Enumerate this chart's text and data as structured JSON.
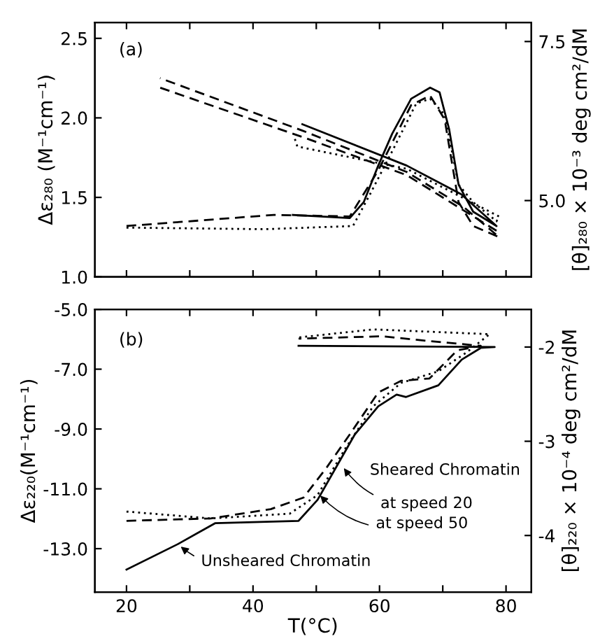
{
  "chart_data": [
    {
      "type": "line",
      "ylabel": "Δε₂₈₀ (M⁻¹cm⁻¹)",
      "y2label": "[θ]₂₈₀ × 10⁻³ deg cm²/dM",
      "xlim": [
        15,
        84
      ],
      "xticks": [
        20,
        30,
        40,
        50,
        60,
        70,
        80
      ],
      "tick_labels": "y",
      "ylim": [
        1.0,
        2.6
      ],
      "yticks": [
        {
          "value": 1.0,
          "label": "1.0"
        },
        {
          "value": 1.5,
          "label": "1.5"
        },
        {
          "value": 2.0,
          "label": "2.0"
        },
        {
          "value": 2.5,
          "label": "2.5"
        }
      ],
      "y2lim": [
        3.8,
        7.8
      ],
      "y2ticks": [
        {
          "value": 5,
          "label": "5.0"
        },
        {
          "value": 7.5,
          "label": "7.5"
        }
      ],
      "grid": false,
      "legend": false,
      "marker": "none",
      "series": [
        {
          "color": "#000000",
          "line_style": "solid",
          "x": [
            46.3,
            55.3,
            57.5,
            59.8,
            62.0,
            65.0,
            68.0,
            69.5,
            71.0,
            72.5,
            74.8,
            78.5,
            72.9,
            64.3,
            47.8
          ],
          "values": [
            1.39,
            1.37,
            1.47,
            1.7,
            1.9,
            2.12,
            2.19,
            2.16,
            1.93,
            1.58,
            1.41,
            1.32,
            1.52,
            1.7,
            1.96
          ]
        },
        {
          "color": "#000000",
          "line_style": "dashed",
          "x": [
            20,
            43.3,
            55.3,
            59.8,
            65.0,
            68.0,
            70.3,
            72.5,
            74.8,
            78.9,
            73.3,
            64.3,
            47.8,
            25.3
          ],
          "values": [
            1.32,
            1.39,
            1.38,
            1.67,
            2.08,
            2.14,
            1.99,
            1.47,
            1.32,
            1.25,
            1.44,
            1.66,
            1.92,
            2.25
          ]
        },
        {
          "color": "#000000",
          "line_style": "dashed",
          "x": [
            78.5,
            64.3,
            48.5,
            25.3
          ],
          "values": [
            1.29,
            1.64,
            1.87,
            2.19
          ]
        },
        {
          "color": "#000000",
          "line_style": "dotted",
          "x": [
            20,
            41.8,
            55.8,
            58.5,
            62.0,
            65.8,
            68.0,
            70.3,
            72.5,
            74.8,
            78.5,
            78.9,
            64.3,
            47.0,
            46.6
          ],
          "values": [
            1.31,
            1.3,
            1.32,
            1.52,
            1.79,
            2.09,
            2.12,
            2.02,
            1.58,
            1.47,
            1.35,
            1.38,
            1.68,
            1.82,
            1.87
          ]
        }
      ],
      "annotations": [
        "(a)"
      ]
    },
    {
      "type": "line",
      "xlabel": "T(°C)",
      "ylabel": "Δε₂₂₀(M⁻¹cm⁻¹)",
      "y2label": "[θ]₂₂₀ × 10⁻⁴ deg cm²/dM",
      "xlim": [
        15,
        84
      ],
      "xticks": [
        20,
        {
          "value": 30,
          "label": null
        },
        40,
        {
          "value": 50,
          "label": null
        },
        60,
        {
          "value": 70,
          "label": null
        },
        80
      ],
      "ylim": [
        -14.45,
        -5.0
      ],
      "yticks": [
        {
          "value": -13,
          "label": "-13.0"
        },
        {
          "value": -11,
          "label": "-11.0"
        },
        {
          "value": -9,
          "label": "-9.0"
        },
        {
          "value": -7,
          "label": "-7.0"
        },
        {
          "value": -5,
          "label": "-5.0"
        }
      ],
      "y2lim": [
        -4.6,
        -1.6
      ],
      "y2ticks": [
        {
          "value": -4,
          "label": "-4"
        },
        {
          "value": -3,
          "label": "-3"
        },
        {
          "value": -2,
          "label": "-2"
        }
      ],
      "grid": false,
      "legend": false,
      "marker": "none",
      "series": [
        {
          "color": "#000000",
          "line_style": "solid",
          "x": [
            20,
            28.1,
            34.0,
            47.2,
            50.2,
            56.1,
            59.8,
            62.7,
            64.2,
            69.3,
            73.0,
            76.0,
            78.2,
            47.2
          ],
          "values": [
            -13.7,
            -12.85,
            -12.15,
            -12.07,
            -11.37,
            -9.18,
            -8.24,
            -7.85,
            -7.93,
            -7.54,
            -6.68,
            -6.29,
            -6.26,
            -6.22
          ]
        },
        {
          "color": "#000000",
          "line_style": "dashed",
          "x": [
            20,
            33.3,
            42.8,
            48.0,
            51.7,
            55.3,
            59.8,
            63.4,
            67.9,
            72.3,
            76.0,
            67.9,
            60.5,
            47.2
          ],
          "values": [
            -12.07,
            -11.99,
            -11.68,
            -11.29,
            -10.27,
            -9.18,
            -7.78,
            -7.39,
            -7.31,
            -6.37,
            -6.22,
            -6.06,
            -5.9,
            -5.98
          ]
        },
        {
          "color": "#000000",
          "line_style": "dotted",
          "x": [
            20,
            33.3,
            45.8,
            50.2,
            54.6,
            59.0,
            63.4,
            69.3,
            73.7,
            77.4,
            59.0,
            47.2
          ],
          "values": [
            -11.76,
            -11.99,
            -11.83,
            -11.21,
            -9.65,
            -8.24,
            -7.46,
            -7.07,
            -6.45,
            -5.83,
            -5.67,
            -5.94
          ]
        }
      ],
      "annotations": [
        "(b)",
        "Sheared Chromatin",
        {
          "text": "at speed 20",
          "x": 54.0,
          "y": -10.2
        },
        {
          "text": "at speed 50",
          "x": 50.2,
          "y": -11.13
        },
        {
          "text": "Unsheared Chromatin",
          "x": 28.1,
          "y": -12.85
        }
      ]
    }
  ]
}
